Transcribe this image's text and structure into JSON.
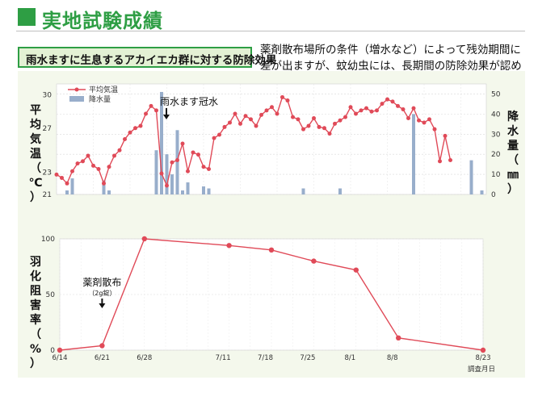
{
  "header": {
    "title": "実地試験成績",
    "subtitle": "雨水ますに生息するアカイエカ群に対する防除効果",
    "description": "薬剤散布場所の条件（増水など）によって残効期間に差が出ますが、蚊幼虫には、長期間の防除効果が認められます。"
  },
  "colors": {
    "accent": "#2e9e44",
    "line": "#e04a58",
    "bar": "#98aecb",
    "panel_bg": "#f4f8ec"
  },
  "chart_data": [
    {
      "type": "line+bar",
      "legend": [
        "平均気温",
        "降水量"
      ],
      "legend_position": "top-left",
      "left_axis": {
        "label_chars": [
          "平",
          "均",
          "気",
          "温",
          "（",
          "℃",
          "）"
        ],
        "ticks": [
          21,
          23,
          27,
          30
        ],
        "ylim": [
          21,
          31
        ]
      },
      "right_axis": {
        "label_chars": [
          "降",
          "水",
          "量",
          "（",
          "㎜",
          "）"
        ],
        "ticks": [
          0,
          10,
          20,
          30,
          40,
          50
        ],
        "ylim": [
          0,
          55
        ]
      },
      "annotation": "雨水ます冠水",
      "annotation_day": 20,
      "day_range": [
        0,
        70
      ],
      "temperature": [
        22.8,
        22.5,
        22.0,
        23.1,
        23.8,
        24.0,
        24.5,
        23.6,
        23.3,
        22.0,
        23.5,
        24.5,
        25.0,
        26.0,
        26.6,
        27.0,
        27.2,
        28.3,
        29.0,
        28.6,
        22.9,
        21.8,
        23.9,
        24.1,
        25.6,
        23.1,
        24.8,
        24.6,
        23.5,
        23.3,
        26.1,
        26.4,
        27.1,
        27.5,
        28.3,
        27.4,
        28.1,
        27.8,
        27.2,
        28.2,
        28.6,
        28.9,
        28.3,
        29.8,
        29.5,
        28.0,
        27.8,
        26.9,
        27.2,
        27.9,
        27.1,
        27.0,
        26.5,
        27.4,
        27.7,
        28.0,
        28.9,
        28.3,
        28.6,
        28.8,
        28.5,
        28.6,
        29.2,
        29.6,
        29.4,
        29.0,
        28.7,
        27.9,
        28.8,
        27.7,
        27.5,
        27.8
      ],
      "temperature_tail": [
        26.9,
        24.0,
        26.3,
        24.1
      ],
      "rain_days": [
        2,
        3,
        9,
        10,
        19,
        20,
        21,
        22,
        23,
        24,
        25,
        28,
        29,
        47,
        54,
        68,
        79,
        81
      ],
      "rain_values": [
        2,
        8,
        7,
        2,
        22,
        51,
        20,
        10,
        32,
        2,
        6,
        4,
        3,
        3,
        3,
        40,
        17,
        2
      ]
    },
    {
      "type": "line",
      "ylabel_chars": [
        "羽",
        "化",
        "阻",
        "害",
        "率",
        "（",
        "%",
        "）"
      ],
      "xlabel": "調査月日",
      "ylim": [
        0,
        100
      ],
      "yticks": [
        0,
        50,
        100
      ],
      "x_days": [
        0,
        7,
        14,
        28,
        35,
        42,
        49,
        56,
        70
      ],
      "x_tick_labels": [
        "6/14",
        "6/21",
        "6/28",
        "7/11",
        "7/18",
        "7/25",
        "8/1",
        "8/8",
        "8/23"
      ],
      "x_tick_days": [
        0,
        7,
        14,
        27,
        34,
        41,
        48,
        55,
        70
      ],
      "values": [
        0,
        4,
        100,
        94,
        90,
        80,
        72,
        11,
        0
      ],
      "annotation": "薬剤散布",
      "annotation_sub": "（2g錠）",
      "annotation_day": 7
    }
  ]
}
